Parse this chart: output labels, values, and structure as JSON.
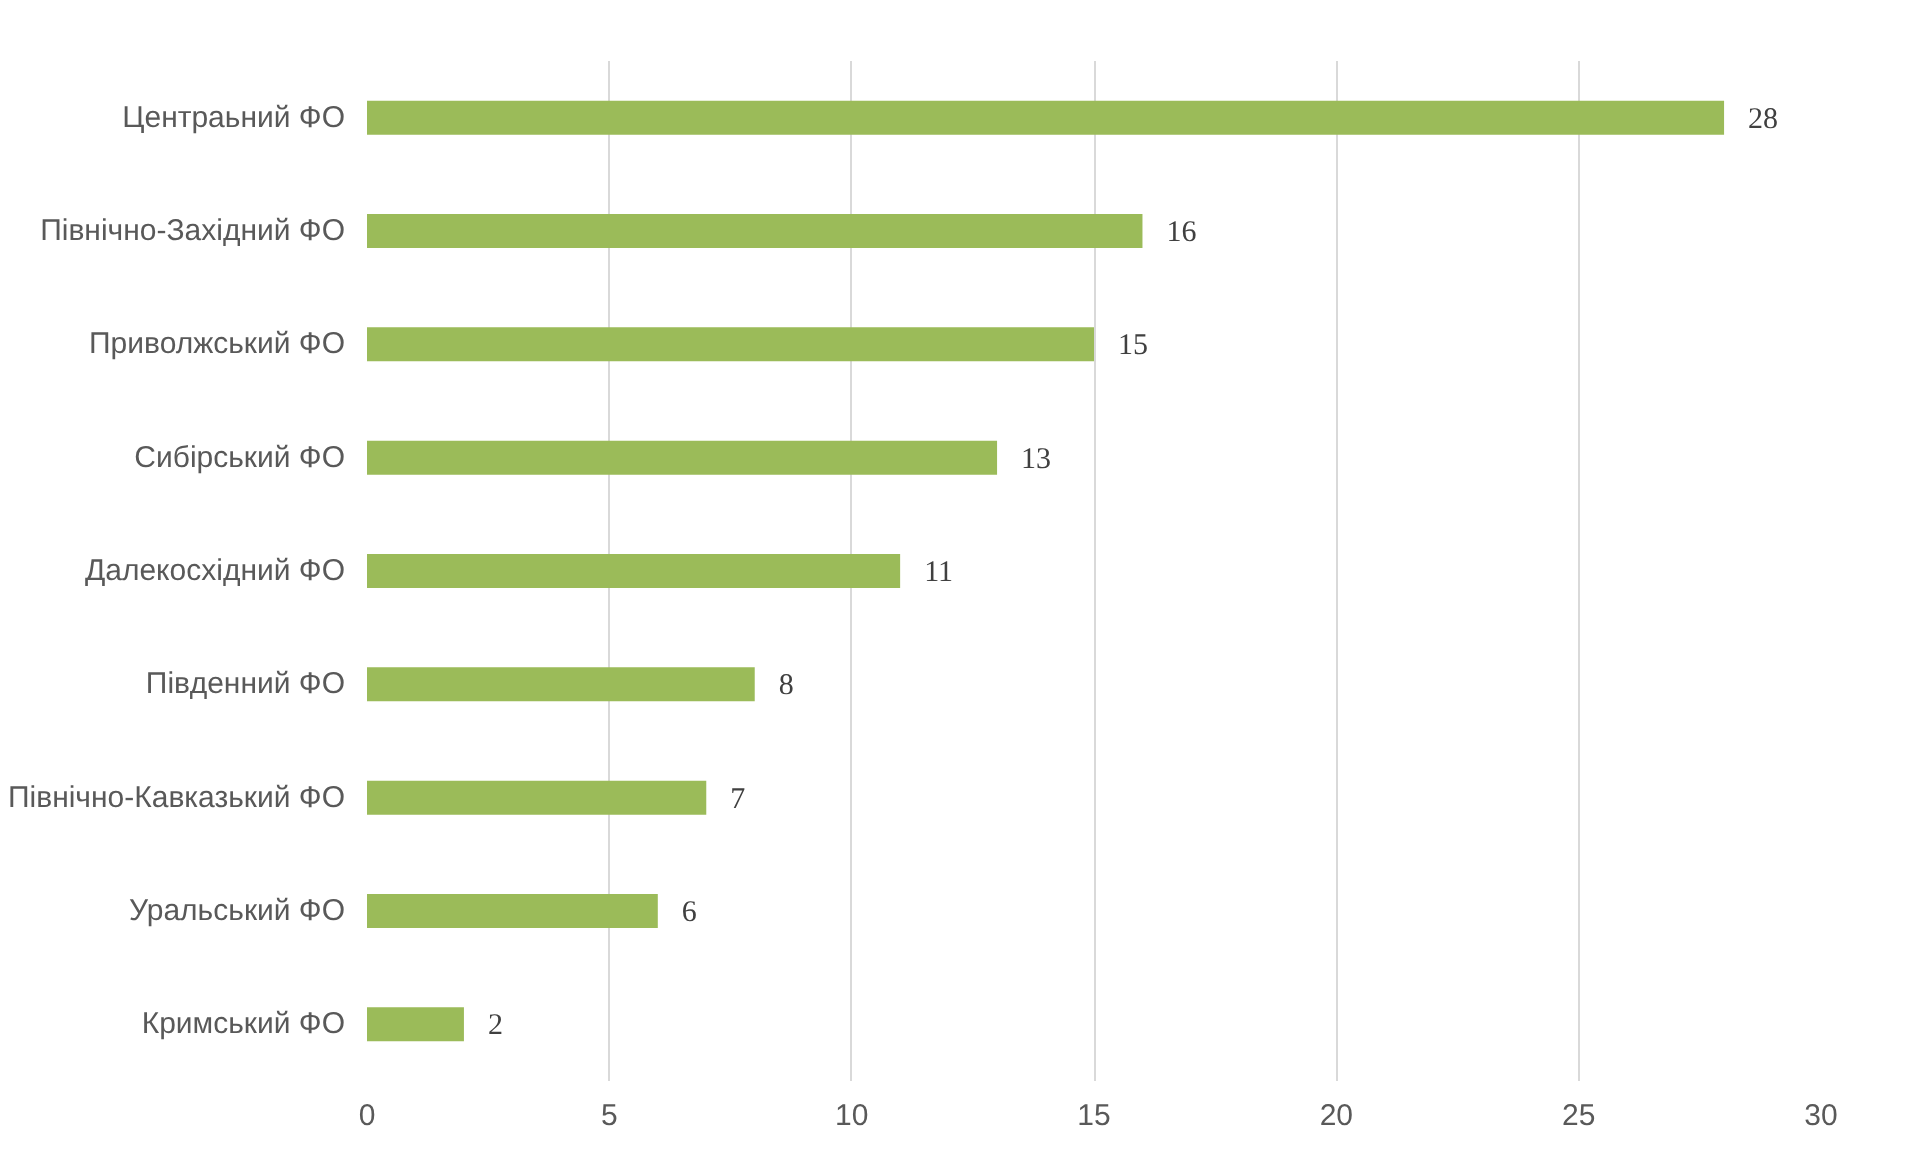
{
  "chart_data": {
    "type": "bar",
    "orientation": "horizontal",
    "categories": [
      "Центраьний ФО",
      "Північно-Західний ФО",
      "Приволжський ФО",
      "Сибірський ФО",
      "Далекосхідний ФО",
      "Південний ФО",
      "Північно-Кавказький ФО",
      "Уральський ФО",
      "Кримський ФО"
    ],
    "values": [
      28,
      16,
      15,
      13,
      11,
      8,
      7,
      6,
      2
    ],
    "color": "#9bbb59",
    "xlim": [
      0,
      30
    ],
    "xticks": [
      0,
      5,
      10,
      15,
      20,
      25,
      30
    ],
    "grid": "x",
    "data_labels": true
  }
}
